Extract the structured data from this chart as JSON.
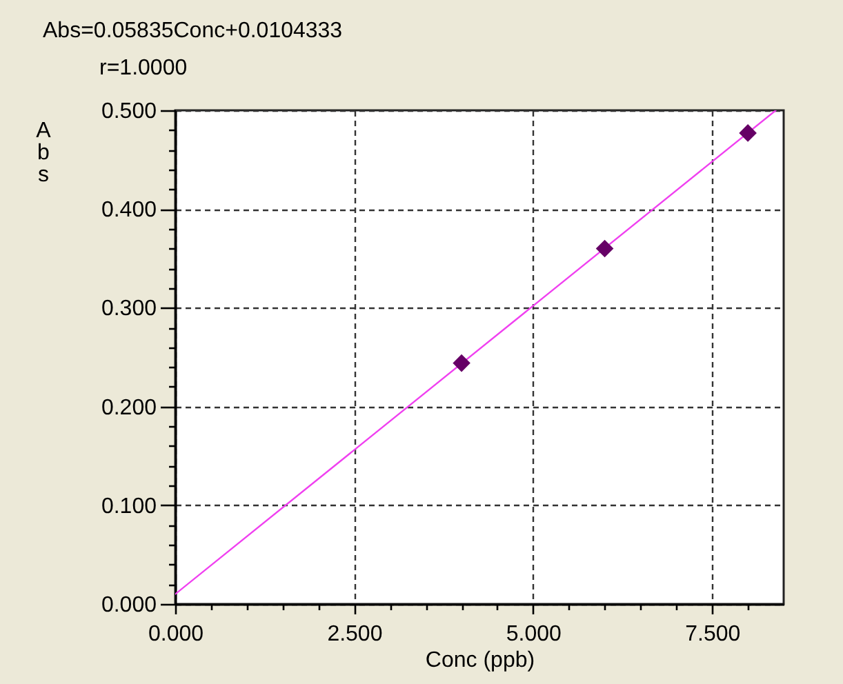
{
  "chart_data": {
    "type": "scatter",
    "title": "Abs=0.05835Conc+0.0104333",
    "subtitle": "r=1.0000",
    "xlabel": "Conc (ppb)",
    "ylabel": "Abs",
    "xlim": [
      0,
      8.5
    ],
    "ylim": [
      0,
      0.5
    ],
    "xticks": [
      {
        "value": 0,
        "label": "0.000"
      },
      {
        "value": 0.5,
        "label": null
      },
      {
        "value": 1,
        "label": null
      },
      {
        "value": 1.5,
        "label": null
      },
      {
        "value": 2,
        "label": null
      },
      {
        "value": 2.5,
        "label": "2.500"
      },
      {
        "value": 3,
        "label": null
      },
      {
        "value": 3.5,
        "label": null
      },
      {
        "value": 4,
        "label": null
      },
      {
        "value": 4.5,
        "label": null
      },
      {
        "value": 5,
        "label": "5.000"
      },
      {
        "value": 5.5,
        "label": null
      },
      {
        "value": 6,
        "label": null
      },
      {
        "value": 6.5,
        "label": null
      },
      {
        "value": 7,
        "label": null
      },
      {
        "value": 7.5,
        "label": "7.500"
      },
      {
        "value": 8,
        "label": null
      }
    ],
    "yticks": [
      {
        "value": 0,
        "label": "0.000"
      },
      {
        "value": 0.02,
        "label": null
      },
      {
        "value": 0.04,
        "label": null
      },
      {
        "value": 0.06,
        "label": null
      },
      {
        "value": 0.08,
        "label": null
      },
      {
        "value": 0.1,
        "label": "0.100"
      },
      {
        "value": 0.12,
        "label": null
      },
      {
        "value": 0.14,
        "label": null
      },
      {
        "value": 0.16,
        "label": null
      },
      {
        "value": 0.18,
        "label": null
      },
      {
        "value": 0.2,
        "label": "0.200"
      },
      {
        "value": 0.22,
        "label": null
      },
      {
        "value": 0.24,
        "label": null
      },
      {
        "value": 0.26,
        "label": null
      },
      {
        "value": 0.28,
        "label": null
      },
      {
        "value": 0.3,
        "label": "0.300"
      },
      {
        "value": 0.32,
        "label": null
      },
      {
        "value": 0.34,
        "label": null
      },
      {
        "value": 0.36,
        "label": null
      },
      {
        "value": 0.38,
        "label": null
      },
      {
        "value": 0.4,
        "label": "0.400"
      },
      {
        "value": 0.42,
        "label": null
      },
      {
        "value": 0.44,
        "label": null
      },
      {
        "value": 0.46,
        "label": null
      },
      {
        "value": 0.48,
        "label": null
      },
      {
        "value": 0.5,
        "label": "0.500"
      }
    ],
    "grid": true,
    "marker": "diamond",
    "series": [
      {
        "type": "line",
        "color": "#f040f0",
        "x": [
          0,
          8.39
        ],
        "values": [
          0.01,
          0.5
        ],
        "marker": "none",
        "line_style": "solid"
      },
      {
        "type": "scatter",
        "color": "#660066",
        "x": [
          4,
          6,
          8
        ],
        "values": [
          0.244,
          0.36,
          0.477
        ]
      }
    ]
  }
}
